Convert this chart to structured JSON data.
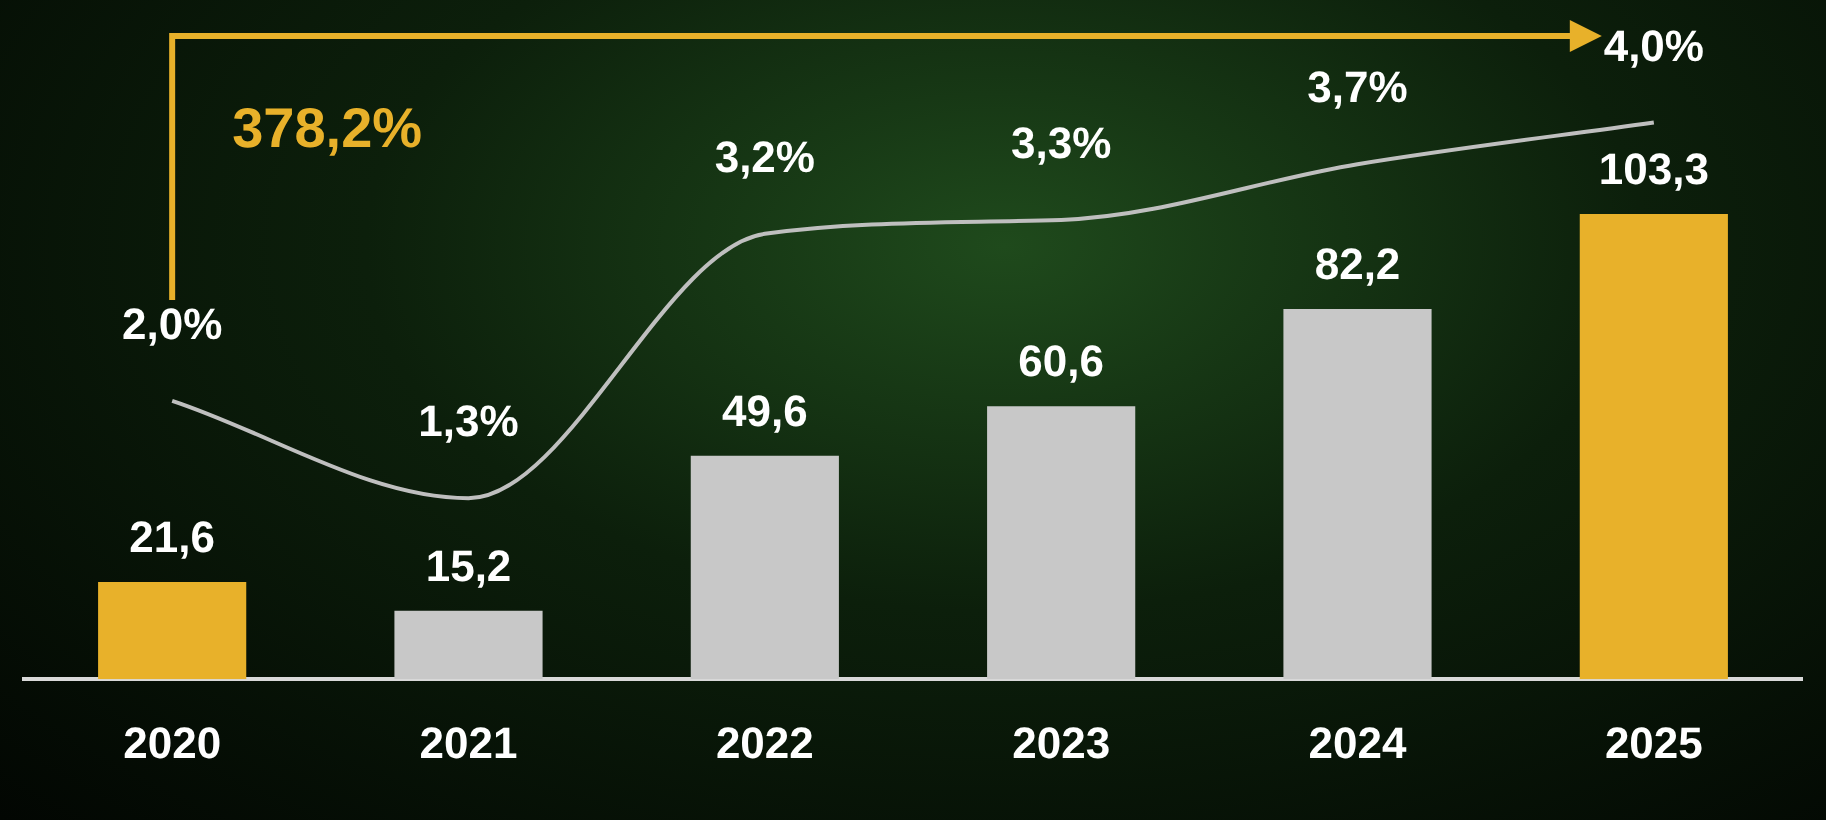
{
  "chart_data": {
    "type": "bar",
    "categories": [
      "2020",
      "2021",
      "2022",
      "2023",
      "2024",
      "2025"
    ],
    "series": [
      {
        "colors": [
          "#e8b12a",
          "#c8c8c8",
          "#c8c8c8",
          "#c8c8c8",
          "#c8c8c8",
          "#e8b12a"
        ],
        "values": [
          21.6,
          15.2,
          49.6,
          60.6,
          82.2,
          103.3
        ],
        "value_labels": [
          "21,6",
          "15,2",
          "49,6",
          "60,6",
          "82,2",
          "103,3"
        ]
      },
      {
        "type": "line",
        "axis": "y2",
        "color": "#bfbfbf",
        "values": [
          2.0,
          1.3,
          3.2,
          3.3,
          3.7,
          4.0
        ],
        "value_labels": [
          "2,0%",
          "1,3%",
          "3,2%",
          "3,3%",
          "3,7%",
          "4,0%"
        ]
      }
    ],
    "annotations": [
      "378,2%"
    ],
    "legend": false,
    "grid": false,
    "marker": "none",
    "tick_labels": "x"
  }
}
